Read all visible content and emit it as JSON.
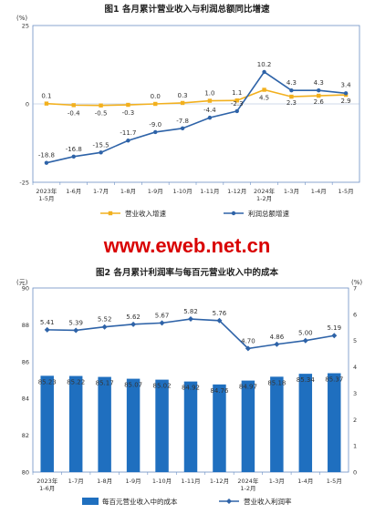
{
  "chart_data": [
    {
      "type": "line",
      "title": "图1 各月累计营业收入与利润总额同比增速",
      "unit_label": "(%)",
      "y_ticks": [
        "25",
        "0",
        "-25"
      ],
      "ylim": [
        -25,
        25
      ],
      "categories": [
        "2023年\n1-5月",
        "1-6月",
        "1-7月",
        "1-8月",
        "1-9月",
        "1-10月",
        "1-11月",
        "1-12月",
        "2024年\n1-2月",
        "1-3月",
        "1-4月",
        "1-5月"
      ],
      "series": [
        {
          "name": "营业收入增速",
          "color": "#f2b01e",
          "values": [
            0.1,
            -0.4,
            -0.5,
            -0.3,
            0.0,
            0.3,
            1.0,
            1.1,
            4.5,
            2.3,
            2.6,
            2.9
          ],
          "labels": [
            "0.1",
            "-0.4",
            "-0.5",
            "-0.3",
            "0.0",
            "0.3",
            "1.0",
            "1.1",
            "4.5",
            "2.3",
            "2.6",
            "2.9"
          ]
        },
        {
          "name": "利润总额增速",
          "color": "#2e63a8",
          "values": [
            -18.8,
            -16.8,
            -15.5,
            -11.7,
            -9.0,
            -7.8,
            -4.4,
            -2.3,
            10.2,
            4.3,
            4.3,
            3.4
          ],
          "labels": [
            "-18.8",
            "-16.8",
            "-15.5",
            "-11.7",
            "-9.0",
            "-7.8",
            "-4.4",
            "-2.3",
            "10.2",
            "4.3",
            "4.3",
            "3.4"
          ]
        }
      ]
    },
    {
      "type": "bar",
      "title": "图2 各月累计利润率与每百元营业收入中的成本",
      "left_unit": "(元)",
      "right_unit": "(%)",
      "ylim": [
        80,
        90
      ],
      "y_ticks": [
        "90",
        "88",
        "86",
        "84",
        "82",
        "80"
      ],
      "y2lim": [
        0,
        7
      ],
      "y2_ticks": [
        "7",
        "6",
        "5",
        "4",
        "3",
        "2",
        "1",
        "0"
      ],
      "categories": [
        "2023年\n1-6月",
        "1-7月",
        "1-8月",
        "1-9月",
        "1-10月",
        "1-11月",
        "1-12月",
        "2024年\n1-2月",
        "1-3月",
        "1-4月",
        "1-5月"
      ],
      "series": [
        {
          "name": "每百元营业收入中的成本",
          "color": "#1f6fbf",
          "axis": "left",
          "values": [
            85.23,
            85.22,
            85.17,
            85.07,
            85.02,
            84.92,
            84.76,
            84.97,
            85.18,
            85.34,
            85.37
          ],
          "labels": [
            "85.23",
            "85.22",
            "85.17",
            "85.07",
            "85.02",
            "84.92",
            "84.76",
            "84.97",
            "85.18",
            "85.34",
            "85.37"
          ]
        },
        {
          "name": "营业收入利润率",
          "color": "#2e63a8",
          "axis": "right",
          "values": [
            5.41,
            5.39,
            5.52,
            5.62,
            5.67,
            5.82,
            5.76,
            4.7,
            4.86,
            5.0,
            5.19
          ],
          "labels": [
            "5.41",
            "5.39",
            "5.52",
            "5.62",
            "5.67",
            "5.82",
            "5.76",
            "4.70",
            "4.86",
            "5.00",
            "5.19"
          ]
        }
      ]
    }
  ],
  "watermark": "www.eweb.net.cn"
}
